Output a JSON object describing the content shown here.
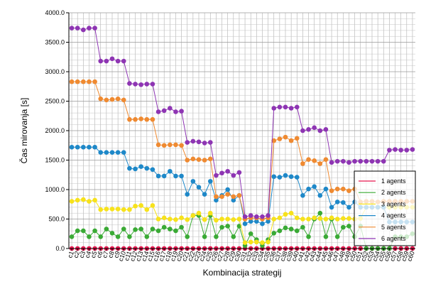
{
  "chart_data": {
    "type": "line",
    "title": "",
    "xlabel": "Kombinacija strategij",
    "ylabel": "Čas mirovanja [s]",
    "ylim": [
      0,
      4000
    ],
    "yticks": [
      "0.0",
      "500.0",
      "1000.0",
      "1500.0",
      "2000.0",
      "2500.0",
      "3000.0",
      "3500.0",
      "4000.0"
    ],
    "grid": true,
    "legend_position": "bottom-right",
    "categories": [
      "c1",
      "c2",
      "c3",
      "c4",
      "c5",
      "c6",
      "c7",
      "c8",
      "c9",
      "c10",
      "c11",
      "c12",
      "c13",
      "c14",
      "c15",
      "c16",
      "c17",
      "c18",
      "c19",
      "c20",
      "c21",
      "c22",
      "c23",
      "c24",
      "c25",
      "c26",
      "c27",
      "c28",
      "c29",
      "c30",
      "c31",
      "c32",
      "c33",
      "c34",
      "c35",
      "c36",
      "c37",
      "c38",
      "c39",
      "c40",
      "c41",
      "c42",
      "c43",
      "c44",
      "c45",
      "c46",
      "c47",
      "c48",
      "c49",
      "c50",
      "c51",
      "c52",
      "c53",
      "c54",
      "c55",
      "c56",
      "c57",
      "c58",
      "c59",
      "c60"
    ],
    "series": [
      {
        "name": "1 agents",
        "color": "#e8174f",
        "values": [
          0,
          0,
          0,
          0,
          0,
          0,
          0,
          0,
          0,
          0,
          0,
          0,
          0,
          0,
          0,
          0,
          0,
          0,
          0,
          0,
          0,
          0,
          0,
          0,
          0,
          0,
          0,
          0,
          0,
          0,
          0,
          0,
          0,
          0,
          0,
          0,
          0,
          0,
          0,
          0,
          0,
          0,
          0,
          0,
          0,
          0,
          0,
          0,
          0,
          0,
          0,
          0,
          0,
          0,
          0,
          0,
          0,
          0,
          0,
          0
        ]
      },
      {
        "name": "2 agents",
        "color": "#3aaa35",
        "values": [
          200,
          300,
          300,
          200,
          300,
          200,
          330,
          260,
          200,
          330,
          200,
          320,
          330,
          200,
          330,
          300,
          360,
          330,
          300,
          360,
          200,
          560,
          560,
          200,
          560,
          200,
          360,
          380,
          200,
          380,
          50,
          250,
          150,
          50,
          150,
          260,
          300,
          350,
          330,
          300,
          360,
          200,
          500,
          600,
          200,
          500,
          200,
          360,
          380,
          200,
          380,
          0,
          0,
          0,
          0,
          0,
          200,
          200,
          200,
          250
        ]
      },
      {
        "name": "3 agents",
        "color": "#f7e21b",
        "values": [
          800,
          820,
          830,
          800,
          820,
          660,
          670,
          670,
          670,
          660,
          660,
          720,
          730,
          660,
          730,
          500,
          520,
          500,
          490,
          520,
          490,
          560,
          600,
          490,
          600,
          480,
          500,
          500,
          490,
          500,
          100,
          110,
          110,
          100,
          110,
          500,
          520,
          580,
          600,
          520,
          500,
          500,
          520,
          510,
          500,
          520,
          500,
          510,
          510,
          500,
          510,
          700,
          700,
          700,
          700,
          700,
          700,
          700,
          700,
          700
        ]
      },
      {
        "name": "4 agents",
        "color": "#1e88c8",
        "values": [
          1720,
          1720,
          1720,
          1720,
          1720,
          1630,
          1630,
          1630,
          1630,
          1630,
          1360,
          1350,
          1390,
          1360,
          1340,
          1230,
          1230,
          1310,
          1230,
          1230,
          920,
          1140,
          1040,
          920,
          1140,
          820,
          900,
          1000,
          820,
          900,
          420,
          460,
          460,
          420,
          460,
          1220,
          1210,
          1240,
          1220,
          1210,
          900,
          1010,
          1050,
          900,
          1010,
          700,
          790,
          780,
          700,
          790,
          700,
          700,
          700,
          700,
          700,
          450,
          450,
          450,
          450,
          450
        ]
      },
      {
        "name": "5 agents",
        "color": "#ef8a31",
        "values": [
          2830,
          2830,
          2830,
          2830,
          2830,
          2540,
          2520,
          2530,
          2540,
          2520,
          2190,
          2190,
          2200,
          2190,
          2190,
          1760,
          1750,
          1760,
          1760,
          1750,
          1500,
          1520,
          1510,
          1500,
          1520,
          880,
          880,
          920,
          880,
          900,
          500,
          520,
          520,
          500,
          520,
          1830,
          1860,
          1890,
          1830,
          1870,
          1440,
          1510,
          1490,
          1440,
          1510,
          980,
          1010,
          1010,
          980,
          1010,
          790,
          800,
          800,
          790,
          800,
          800,
          800,
          800,
          800,
          800
        ]
      },
      {
        "name": "6 agents",
        "color": "#8e35b3",
        "values": [
          3740,
          3740,
          3710,
          3740,
          3740,
          3180,
          3180,
          3220,
          3180,
          3180,
          2800,
          2790,
          2780,
          2790,
          2790,
          2320,
          2340,
          2380,
          2320,
          2330,
          1800,
          1820,
          1810,
          1790,
          1800,
          1240,
          1280,
          1310,
          1240,
          1290,
          540,
          560,
          540,
          540,
          560,
          2380,
          2400,
          2400,
          2380,
          2400,
          2000,
          2020,
          2050,
          2000,
          2020,
          1460,
          1480,
          1480,
          1460,
          1480,
          1480,
          1480,
          1480,
          1480,
          1480,
          1670,
          1680,
          1670,
          1670,
          1680
        ]
      }
    ]
  }
}
